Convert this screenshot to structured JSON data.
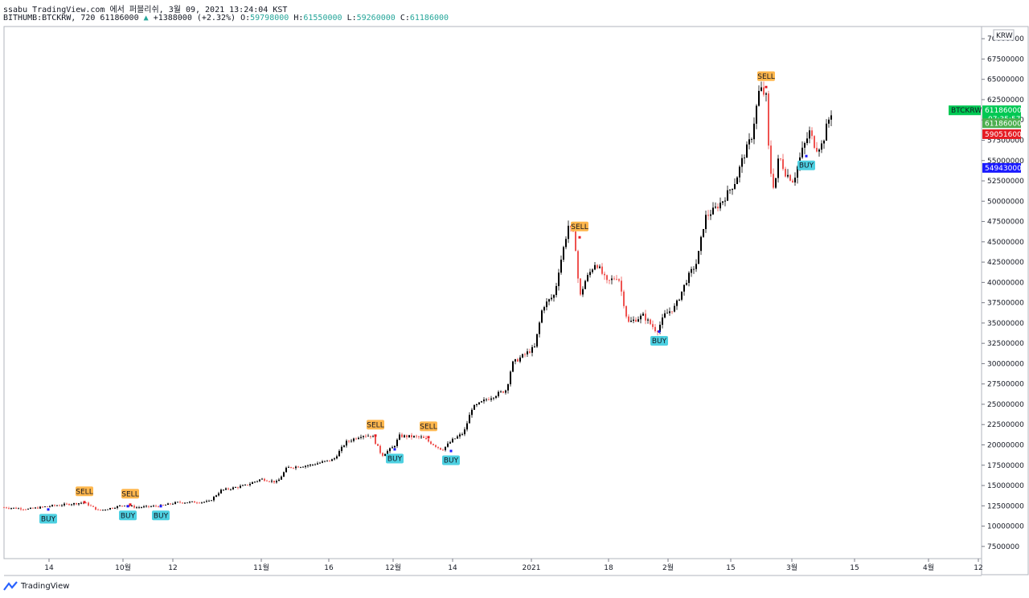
{
  "header": {
    "line1": "ssabu TradingView.com 에서 퍼블리쉬, 3월 09, 2021 13:24:04 KST",
    "symbol": "BITHUMB:BTCKRW, 720",
    "last": "61186000",
    "change": "+1388000 (+2.32%)",
    "open_label": "O:",
    "open": "59798000",
    "high_label": "H:",
    "high": "61550000",
    "low_label": "L:",
    "low": "59260000",
    "close_label": "C:",
    "close": "61186000"
  },
  "footer": {
    "brand": "TradingView"
  },
  "colors": {
    "up": "#000000",
    "down": "#ef5350",
    "grid": "#d9d9d9",
    "sell": "#ffb74d",
    "buy": "#4dd0e1",
    "green": "#00c853",
    "red": "#e51c23",
    "blue": "#1a1aff"
  },
  "chart_data": {
    "type": "candlestick",
    "symbol_label": "BTCKRW",
    "currency": "KRW",
    "ylim": [
      6000000,
      71500000
    ],
    "yticks": [
      7500000,
      10000000,
      12500000,
      15000000,
      17500000,
      20000000,
      22500000,
      25000000,
      27500000,
      30000000,
      32500000,
      35000000,
      37500000,
      40000000,
      42500000,
      45000000,
      47500000,
      50000000,
      52500000,
      55000000,
      57500000,
      60000000,
      62500000,
      65000000,
      67500000,
      70000000
    ],
    "xticks": [
      {
        "label": "14",
        "t": 56
      },
      {
        "label": "10월",
        "t": 148
      },
      {
        "label": "12",
        "t": 210
      },
      {
        "label": "11월",
        "t": 320
      },
      {
        "label": "16",
        "t": 404
      },
      {
        "label": "12월",
        "t": 484
      },
      {
        "label": "14",
        "t": 558
      },
      {
        "label": "2021",
        "t": 656
      },
      {
        "label": "18",
        "t": 752
      },
      {
        "label": "2월",
        "t": 826
      },
      {
        "label": "15",
        "t": 904
      },
      {
        "label": "3월",
        "t": 980
      },
      {
        "label": "15",
        "t": 1058
      },
      {
        "label": "4월",
        "t": 1150
      },
      {
        "label": "12",
        "t": 1212
      }
    ],
    "x_range": [
      0,
      1216
    ],
    "price_path": [
      [
        0,
        12300000
      ],
      [
        30,
        12100000
      ],
      [
        60,
        12500000
      ],
      [
        90,
        12800000
      ],
      [
        100,
        12900000
      ],
      [
        118,
        11900000
      ],
      [
        150,
        12600000
      ],
      [
        165,
        12300000
      ],
      [
        195,
        12500000
      ],
      [
        215,
        12900000
      ],
      [
        255,
        13000000
      ],
      [
        270,
        14400000
      ],
      [
        300,
        15000000
      ],
      [
        320,
        15800000
      ],
      [
        340,
        15400000
      ],
      [
        352,
        17200000
      ],
      [
        380,
        17500000
      ],
      [
        410,
        18200000
      ],
      [
        425,
        20300000
      ],
      [
        445,
        21200000
      ],
      [
        458,
        21100000
      ],
      [
        470,
        18700000
      ],
      [
        485,
        19800000
      ],
      [
        492,
        21100000
      ],
      [
        510,
        21000000
      ],
      [
        520,
        20900000
      ],
      [
        545,
        19400000
      ],
      [
        558,
        20600000
      ],
      [
        572,
        21500000
      ],
      [
        582,
        24500000
      ],
      [
        600,
        25600000
      ],
      [
        625,
        26800000
      ],
      [
        632,
        30000000
      ],
      [
        660,
        32000000
      ],
      [
        670,
        37000000
      ],
      [
        685,
        38500000
      ],
      [
        690,
        41500000
      ],
      [
        702,
        47000000
      ],
      [
        710,
        45500000
      ],
      [
        716,
        38000000
      ],
      [
        722,
        40000000
      ],
      [
        736,
        42500000
      ],
      [
        750,
        40000000
      ],
      [
        764,
        40800000
      ],
      [
        776,
        35000000
      ],
      [
        795,
        35900000
      ],
      [
        812,
        34000000
      ],
      [
        822,
        36000000
      ],
      [
        835,
        37000000
      ],
      [
        850,
        40500000
      ],
      [
        862,
        42500000
      ],
      [
        872,
        48000000
      ],
      [
        884,
        49000000
      ],
      [
        895,
        50200000
      ],
      [
        910,
        52500000
      ],
      [
        918,
        55000000
      ],
      [
        930,
        58000000
      ],
      [
        940,
        64000000
      ],
      [
        948,
        62800000
      ],
      [
        952,
        54500000
      ],
      [
        958,
        51500000
      ],
      [
        964,
        55600000
      ],
      [
        972,
        53500000
      ],
      [
        982,
        52500000
      ],
      [
        992,
        56000000
      ],
      [
        1002,
        58500000
      ],
      [
        1010,
        56500000
      ],
      [
        1018,
        57000000
      ],
      [
        1024,
        59500000
      ],
      [
        1030,
        61186000
      ]
    ],
    "signals": [
      {
        "type": "SELL",
        "t": 100,
        "price": 12900000
      },
      {
        "type": "BUY",
        "t": 55,
        "price": 12100000
      },
      {
        "type": "SELL",
        "t": 157,
        "price": 12600000
      },
      {
        "type": "BUY",
        "t": 154,
        "price": 12500000
      },
      {
        "type": "BUY",
        "t": 195,
        "price": 12500000
      },
      {
        "type": "SELL",
        "t": 462,
        "price": 21100000
      },
      {
        "type": "BUY",
        "t": 486,
        "price": 19500000
      },
      {
        "type": "SELL",
        "t": 528,
        "price": 20900000
      },
      {
        "type": "BUY",
        "t": 556,
        "price": 19300000
      },
      {
        "type": "SELL",
        "t": 716,
        "price": 45500000
      },
      {
        "type": "BUY",
        "t": 815,
        "price": 34000000
      },
      {
        "type": "SELL",
        "t": 948,
        "price": 64000000
      },
      {
        "type": "BUY",
        "t": 998,
        "price": 55600000
      }
    ],
    "price_labels": [
      {
        "name": "last-price",
        "value": "61186000",
        "price": 61186000,
        "color": "#00c853",
        "timer": "07:35:57"
      },
      {
        "name": "close-price",
        "value": "61186000",
        "price": 59600000,
        "color": "#4caf50"
      },
      {
        "name": "red-level",
        "value": "59051600",
        "price": 58250000,
        "color": "#e51c23"
      },
      {
        "name": "blue-level",
        "value": "54943000",
        "price": 54100000,
        "color": "#1a1aff"
      }
    ]
  }
}
